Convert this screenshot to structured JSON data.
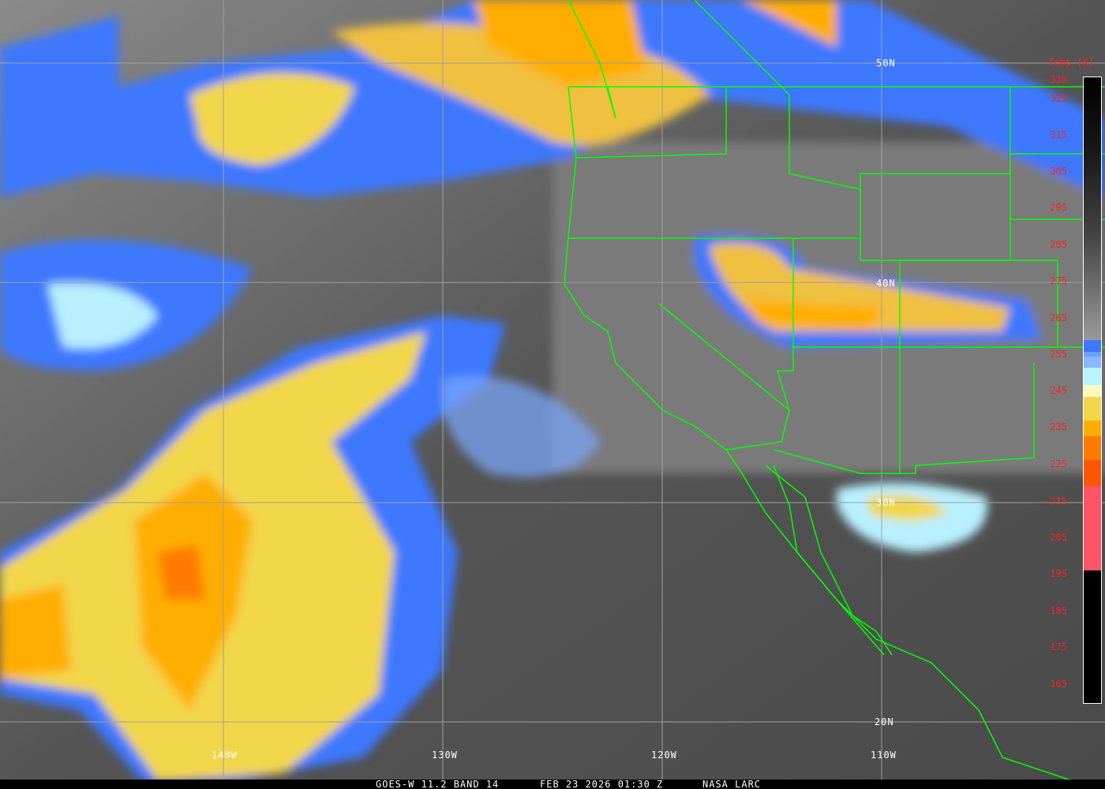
{
  "map": {
    "latitude_labels": [
      "50N",
      "40N",
      "30N",
      "20N"
    ],
    "longitude_labels": [
      "140W",
      "130W",
      "120W",
      "110W"
    ],
    "border_color": "#00ff00",
    "grid_color": "#a0a0a0"
  },
  "legend": {
    "title": "Temp [K]",
    "ticks": [
      "330",
      "325",
      "315",
      "305",
      "295",
      "285",
      "275",
      "265",
      "255",
      "245",
      "235",
      "225",
      "215",
      "205",
      "195",
      "185",
      "175",
      "165"
    ],
    "label_color": "#ff2020"
  },
  "footer": {
    "satellite": "GOES-W 11.2 BAND 14",
    "datetime": "FEB 23 2026 01:30 Z",
    "credit": "NASA LARC"
  }
}
